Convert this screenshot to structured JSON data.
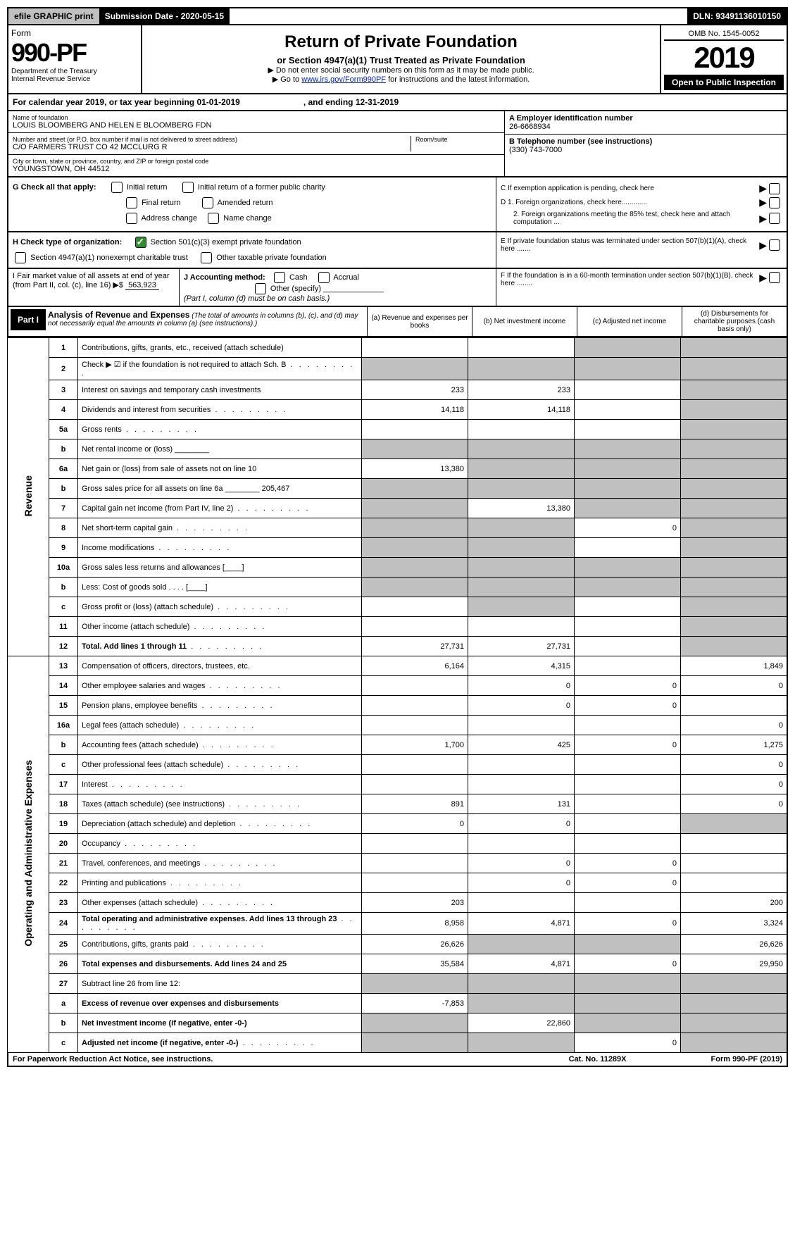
{
  "top": {
    "efile": "efile GRAPHIC print",
    "submission": "Submission Date - 2020-05-15",
    "dln": "DLN: 93491136010150"
  },
  "header": {
    "form": "Form",
    "formnum": "990-PF",
    "dept": "Department of the Treasury\nInternal Revenue Service",
    "title": "Return of Private Foundation",
    "subtitle": "or Section 4947(a)(1) Trust Treated as Private Foundation",
    "note1": "▶ Do not enter social security numbers on this form as it may be made public.",
    "note2a": "▶ Go to ",
    "note2link": "www.irs.gov/Form990PF",
    "note2b": " for instructions and the latest information.",
    "omb": "OMB No. 1545-0052",
    "year": "2019",
    "open": "Open to Public Inspection"
  },
  "calendar": "For calendar year 2019, or tax year beginning 01-01-2019                           , and ending 12-31-2019",
  "ident": {
    "name_label": "Name of foundation",
    "name": "LOUIS BLOOMBERG AND HELEN E BLOOMBERG FDN",
    "addr_label": "Number and street (or P.O. box number if mail is not delivered to street address)",
    "addr": "C/O FARMERS TRUST CO 42 MCCLURG R",
    "room_label": "Room/suite",
    "city_label": "City or town, state or province, country, and ZIP or foreign postal code",
    "city": "YOUNGSTOWN, OH  44512",
    "ein_label": "A Employer identification number",
    "ein": "26-6668934",
    "tel_label": "B Telephone number (see instructions)",
    "tel": "(330) 743-7000",
    "c": "C If exemption application is pending, check here",
    "d1": "D 1. Foreign organizations, check here.............",
    "d2": "2. Foreign organizations meeting the 85% test, check here and attach computation ...",
    "e": "E   If private foundation status was terminated under section 507(b)(1)(A), check here .......",
    "f": "F   If the foundation is in a 60-month termination under section 507(b)(1)(B), check here ........"
  },
  "checks": {
    "g": "G Check all that apply:",
    "g_initial": "Initial return",
    "g_initial_former": "Initial return of a former public charity",
    "g_final": "Final return",
    "g_amended": "Amended return",
    "g_address": "Address change",
    "g_name": "Name change",
    "h": "H Check type of organization:",
    "h_501c3": "Section 501(c)(3) exempt private foundation",
    "h_4947": "Section 4947(a)(1) nonexempt charitable trust",
    "h_other": "Other taxable private foundation",
    "i": "I Fair market value of all assets at end of year (from Part II, col. (c), line 16) ▶$ ",
    "i_val": "563,923",
    "j": "J Accounting method:",
    "j_cash": "Cash",
    "j_accrual": "Accrual",
    "j_other": "Other (specify)",
    "j_note": "(Part I, column (d) must be on cash basis.)"
  },
  "part1": {
    "label": "Part I",
    "title": "Analysis of Revenue and Expenses",
    "note": "(The total of amounts in columns (b), (c), and (d) may not necessarily equal the amounts in column (a) (see instructions).)",
    "col_a": "(a)   Revenue and expenses per books",
    "col_b": "(b)  Net investment income",
    "col_c": "(c)  Adjusted net income",
    "col_d": "(d)  Disbursements for charitable purposes (cash basis only)"
  },
  "sections": {
    "revenue": "Revenue",
    "expenses": "Operating and Administrative Expenses"
  },
  "rows": [
    {
      "n": "1",
      "d": "Contributions, gifts, grants, etc., received (attach schedule)",
      "a": "",
      "b": "",
      "c": "s",
      "dcol": "s"
    },
    {
      "n": "2",
      "d": "Check ▶ ☑ if the foundation is not required to attach Sch. B",
      "dots": true,
      "a": "s",
      "b": "s",
      "c": "s",
      "dcol": "s"
    },
    {
      "n": "3",
      "d": "Interest on savings and temporary cash investments",
      "a": "233",
      "b": "233",
      "c": "",
      "dcol": "s"
    },
    {
      "n": "4",
      "d": "Dividends and interest from securities",
      "dots": true,
      "a": "14,118",
      "b": "14,118",
      "c": "",
      "dcol": "s"
    },
    {
      "n": "5a",
      "d": "Gross rents",
      "dots": true,
      "a": "",
      "b": "",
      "c": "",
      "dcol": "s"
    },
    {
      "n": "b",
      "d": "Net rental income or (loss)   ________",
      "a": "s",
      "b": "s",
      "c": "s",
      "dcol": "s"
    },
    {
      "n": "6a",
      "d": "Net gain or (loss) from sale of assets not on line 10",
      "a": "13,380",
      "b": "s",
      "c": "s",
      "dcol": "s"
    },
    {
      "n": "b",
      "d": "Gross sales price for all assets on line 6a ________ 205,467",
      "a": "s",
      "b": "s",
      "c": "s",
      "dcol": "s"
    },
    {
      "n": "7",
      "d": "Capital gain net income (from Part IV, line 2)",
      "dots": true,
      "a": "s",
      "b": "13,380",
      "c": "s",
      "dcol": "s"
    },
    {
      "n": "8",
      "d": "Net short-term capital gain",
      "dots": true,
      "a": "s",
      "b": "s",
      "c": "0",
      "dcol": "s"
    },
    {
      "n": "9",
      "d": "Income modifications",
      "dots": true,
      "a": "s",
      "b": "s",
      "c": "",
      "dcol": "s"
    },
    {
      "n": "10a",
      "d": "Gross sales less returns and allowances   [____]",
      "a": "s",
      "b": "s",
      "c": "s",
      "dcol": "s"
    },
    {
      "n": "b",
      "d": "Less: Cost of goods sold   . . . .  [____]",
      "a": "s",
      "b": "s",
      "c": "s",
      "dcol": "s"
    },
    {
      "n": "c",
      "d": "Gross profit or (loss) (attach schedule)",
      "dots": true,
      "a": "",
      "b": "s",
      "c": "",
      "dcol": "s"
    },
    {
      "n": "11",
      "d": "Other income (attach schedule)",
      "dots": true,
      "a": "",
      "b": "",
      "c": "",
      "dcol": "s"
    },
    {
      "n": "12",
      "d": "Total. Add lines 1 through 11",
      "bold": true,
      "dots": true,
      "a": "27,731",
      "b": "27,731",
      "c": "",
      "dcol": "s"
    },
    {
      "n": "13",
      "d": "Compensation of officers, directors, trustees, etc.",
      "a": "6,164",
      "b": "4,315",
      "c": "",
      "dcol": "1,849"
    },
    {
      "n": "14",
      "d": "Other employee salaries and wages",
      "dots": true,
      "a": "",
      "b": "0",
      "c": "0",
      "dcol": "0"
    },
    {
      "n": "15",
      "d": "Pension plans, employee benefits",
      "dots": true,
      "a": "",
      "b": "0",
      "c": "0",
      "dcol": ""
    },
    {
      "n": "16a",
      "d": "Legal fees (attach schedule)",
      "dots": true,
      "a": "",
      "b": "",
      "c": "",
      "dcol": "0"
    },
    {
      "n": "b",
      "d": "Accounting fees (attach schedule)",
      "dots": true,
      "a": "1,700",
      "b": "425",
      "c": "0",
      "dcol": "1,275"
    },
    {
      "n": "c",
      "d": "Other professional fees (attach schedule)",
      "dots": true,
      "a": "",
      "b": "",
      "c": "",
      "dcol": "0"
    },
    {
      "n": "17",
      "d": "Interest",
      "dots": true,
      "a": "",
      "b": "",
      "c": "",
      "dcol": "0"
    },
    {
      "n": "18",
      "d": "Taxes (attach schedule) (see instructions)",
      "dots": true,
      "a": "891",
      "b": "131",
      "c": "",
      "dcol": "0"
    },
    {
      "n": "19",
      "d": "Depreciation (attach schedule) and depletion",
      "dots": true,
      "a": "0",
      "b": "0",
      "c": "",
      "dcol": "s"
    },
    {
      "n": "20",
      "d": "Occupancy",
      "dots": true,
      "a": "",
      "b": "",
      "c": "",
      "dcol": ""
    },
    {
      "n": "21",
      "d": "Travel, conferences, and meetings",
      "dots": true,
      "a": "",
      "b": "0",
      "c": "0",
      "dcol": ""
    },
    {
      "n": "22",
      "d": "Printing and publications",
      "dots": true,
      "a": "",
      "b": "0",
      "c": "0",
      "dcol": ""
    },
    {
      "n": "23",
      "d": "Other expenses (attach schedule)",
      "dots": true,
      "a": "203",
      "b": "",
      "c": "",
      "dcol": "200"
    },
    {
      "n": "24",
      "d": "Total operating and administrative expenses. Add lines 13 through 23",
      "bold": true,
      "dots": true,
      "a": "8,958",
      "b": "4,871",
      "c": "0",
      "dcol": "3,324"
    },
    {
      "n": "25",
      "d": "Contributions, gifts, grants paid",
      "dots": true,
      "a": "26,626",
      "b": "s",
      "c": "s",
      "dcol": "26,626"
    },
    {
      "n": "26",
      "d": "Total expenses and disbursements. Add lines 24 and 25",
      "bold": true,
      "a": "35,584",
      "b": "4,871",
      "c": "0",
      "dcol": "29,950"
    },
    {
      "n": "27",
      "d": "Subtract line 26 from line 12:",
      "a": "s",
      "b": "s",
      "c": "s",
      "dcol": "s"
    },
    {
      "n": "a",
      "d": "Excess of revenue over expenses and disbursements",
      "bold": true,
      "a": "-7,853",
      "b": "s",
      "c": "s",
      "dcol": "s"
    },
    {
      "n": "b",
      "d": "Net investment income (if negative, enter -0-)",
      "bold": true,
      "a": "s",
      "b": "22,860",
      "c": "s",
      "dcol": "s"
    },
    {
      "n": "c",
      "d": "Adjusted net income (if negative, enter -0-)",
      "bold": true,
      "dots": true,
      "a": "s",
      "b": "s",
      "c": "0",
      "dcol": "s"
    }
  ],
  "footer": {
    "left": "For Paperwork Reduction Act Notice, see instructions.",
    "mid": "Cat. No. 11289X",
    "right": "Form 990-PF (2019)"
  }
}
